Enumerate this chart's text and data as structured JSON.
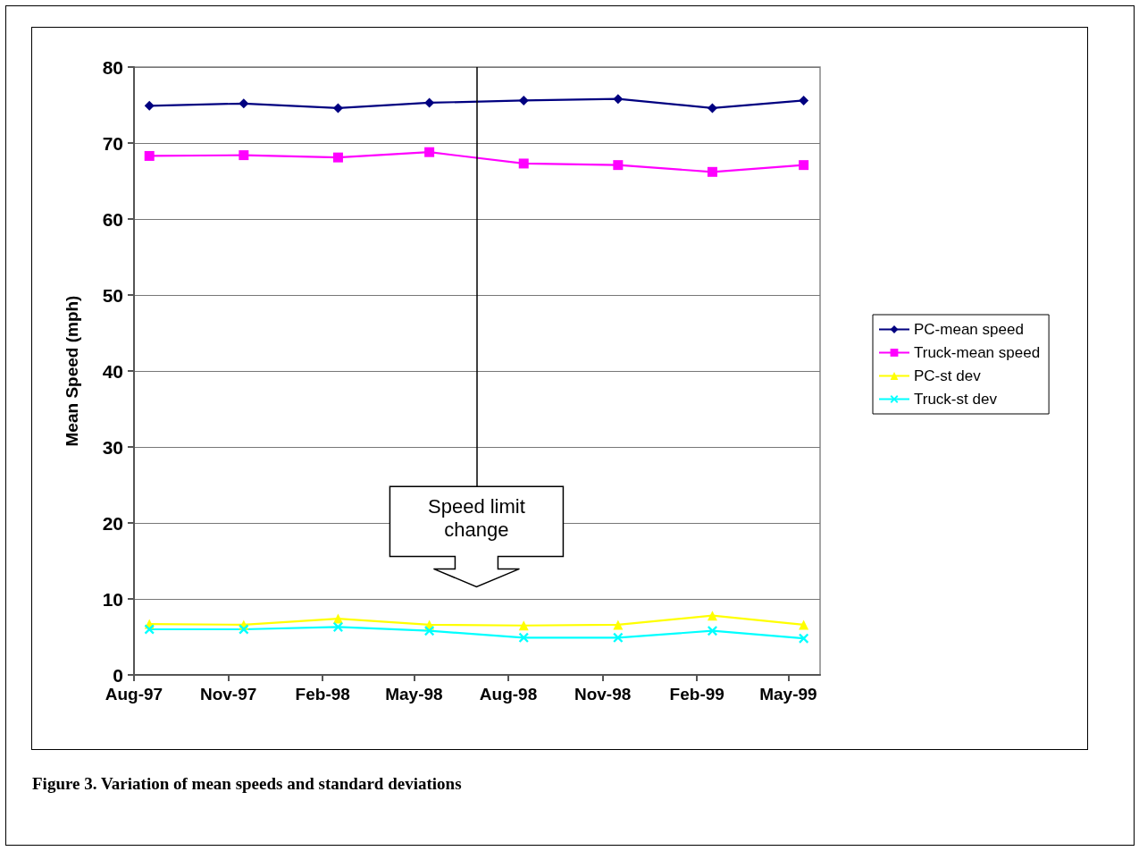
{
  "chart_data": {
    "type": "line",
    "ylabel": "Mean Speed (mph)",
    "annotations": [
      "Figure 3. Variation of mean speeds and standard deviations"
    ],
    "x": [
      "1997-08-16",
      "1997-11-16",
      "1998-02-16",
      "1998-05-16",
      "1998-08-16",
      "1998-11-16",
      "1999-02-16",
      "1999-05-16"
    ],
    "xlim": [
      "1997-08-01",
      "1999-06-01"
    ],
    "xticks": [
      {
        "value": "1997-08-01",
        "label": "Aug-97"
      },
      {
        "value": "1997-11-01",
        "label": "Nov-97"
      },
      {
        "value": "1998-02-01",
        "label": "Feb-98"
      },
      {
        "value": "1998-05-01",
        "label": "May-98"
      },
      {
        "value": "1998-08-01",
        "label": "Aug-98"
      },
      {
        "value": "1998-11-01",
        "label": "Nov-98"
      },
      {
        "value": "1999-02-01",
        "label": "Feb-99"
      },
      {
        "value": "1999-05-01",
        "label": "May-99"
      }
    ],
    "ylim": [
      0,
      80
    ],
    "yticks": [
      0,
      10,
      20,
      30,
      40,
      50,
      60,
      70,
      80
    ],
    "grid": "y",
    "legend": "right",
    "line_style": "solid",
    "series": [
      {
        "name": "PC-mean speed",
        "color": "#000080",
        "marker": "diamond",
        "values": [
          74.9,
          75.2,
          74.6,
          75.3,
          75.6,
          75.8,
          74.6,
          75.6
        ]
      },
      {
        "name": "Truck-mean speed",
        "color": "#ff00ff",
        "marker": "square",
        "values": [
          68.3,
          68.4,
          68.1,
          68.8,
          67.3,
          67.1,
          66.2,
          67.1
        ]
      },
      {
        "name": "PC-st dev",
        "color": "#ffff00",
        "marker": "triangle",
        "values": [
          6.7,
          6.6,
          7.4,
          6.6,
          6.5,
          6.6,
          7.8,
          6.6
        ]
      },
      {
        "name": "Truck-st dev",
        "color": "#00ffff",
        "marker": "cross",
        "values": [
          6.0,
          6.0,
          6.3,
          5.8,
          4.9,
          4.9,
          5.8,
          4.8
        ]
      }
    ],
    "ref_lines": [
      {
        "axis": "x",
        "value": "1998-07-01",
        "label": "Speed limit change",
        "color": "#000000"
      }
    ]
  }
}
